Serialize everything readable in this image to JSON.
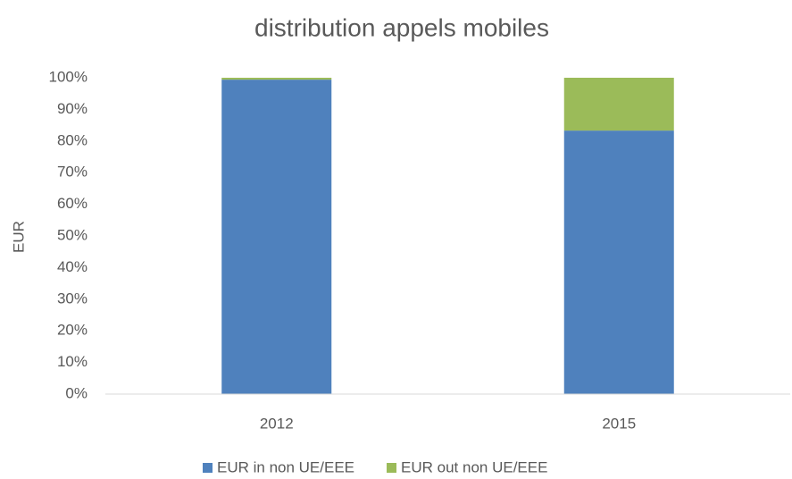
{
  "chart_data": {
    "type": "stacked_bar",
    "title": "distribution appels mobiles",
    "y_label": "EUR",
    "categories": [
      "2012",
      "2015"
    ],
    "series": [
      {
        "name": "EUR in non UE/EEE",
        "color": "#4f81bd",
        "values": [
          99.4,
          83.3
        ]
      },
      {
        "name": "EUR out non UE/EEE",
        "color": "#9bbb59",
        "values": [
          0.6,
          16.7
        ]
      }
    ],
    "ylim": [
      0,
      100
    ],
    "yticks": [
      {
        "value": 0,
        "label": "0%"
      },
      {
        "value": 10,
        "label": "10%"
      },
      {
        "value": 20,
        "label": "20%"
      },
      {
        "value": 30,
        "label": "30%"
      },
      {
        "value": 40,
        "label": "40%"
      },
      {
        "value": 50,
        "label": "50%"
      },
      {
        "value": 60,
        "label": "60%"
      },
      {
        "value": 70,
        "label": "70%"
      },
      {
        "value": 80,
        "label": "80%"
      },
      {
        "value": 90,
        "label": "90%"
      },
      {
        "value": 100,
        "label": "100%"
      }
    ],
    "grid": false,
    "legend": "bottom"
  }
}
